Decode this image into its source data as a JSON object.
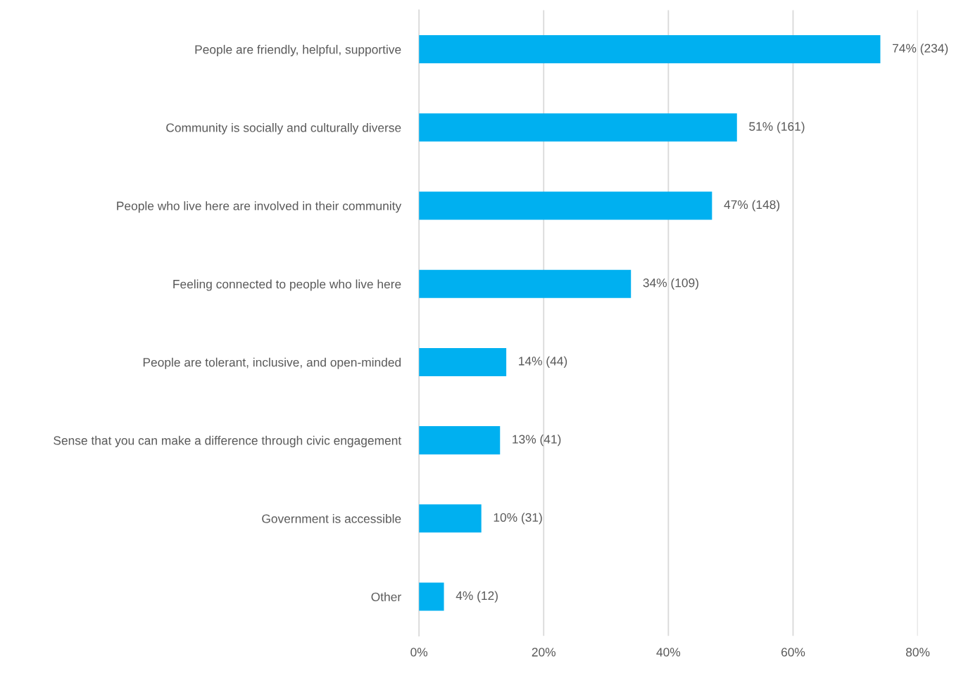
{
  "chart_data": {
    "type": "bar",
    "orientation": "horizontal",
    "categories": [
      "People are friendly, helpful, supportive",
      "Community is socially and culturally diverse",
      "People who live here are involved in their community",
      "Feeling connected to people who live here",
      "People are tolerant, inclusive, and open-minded",
      "Sense that you can make a difference through civic engagement",
      "Government is accessible",
      "Other"
    ],
    "values": [
      74,
      51,
      47,
      34,
      14,
      13,
      10,
      4
    ],
    "value_labels": [
      "74% (234)",
      "51% (161)",
      "47% (148)",
      "34% (109)",
      "14% (44)",
      "13% (41)",
      "10% (31)",
      "4% (12)"
    ],
    "color": "#00b0f0",
    "xlim": [
      0,
      80
    ],
    "xticks": [
      {
        "value": 0,
        "label": "0%"
      },
      {
        "value": 20,
        "label": "20%"
      },
      {
        "value": 40,
        "label": "40%"
      },
      {
        "value": 60,
        "label": "60%"
      },
      {
        "value": 80,
        "label": "80%"
      }
    ],
    "grid": "x"
  }
}
